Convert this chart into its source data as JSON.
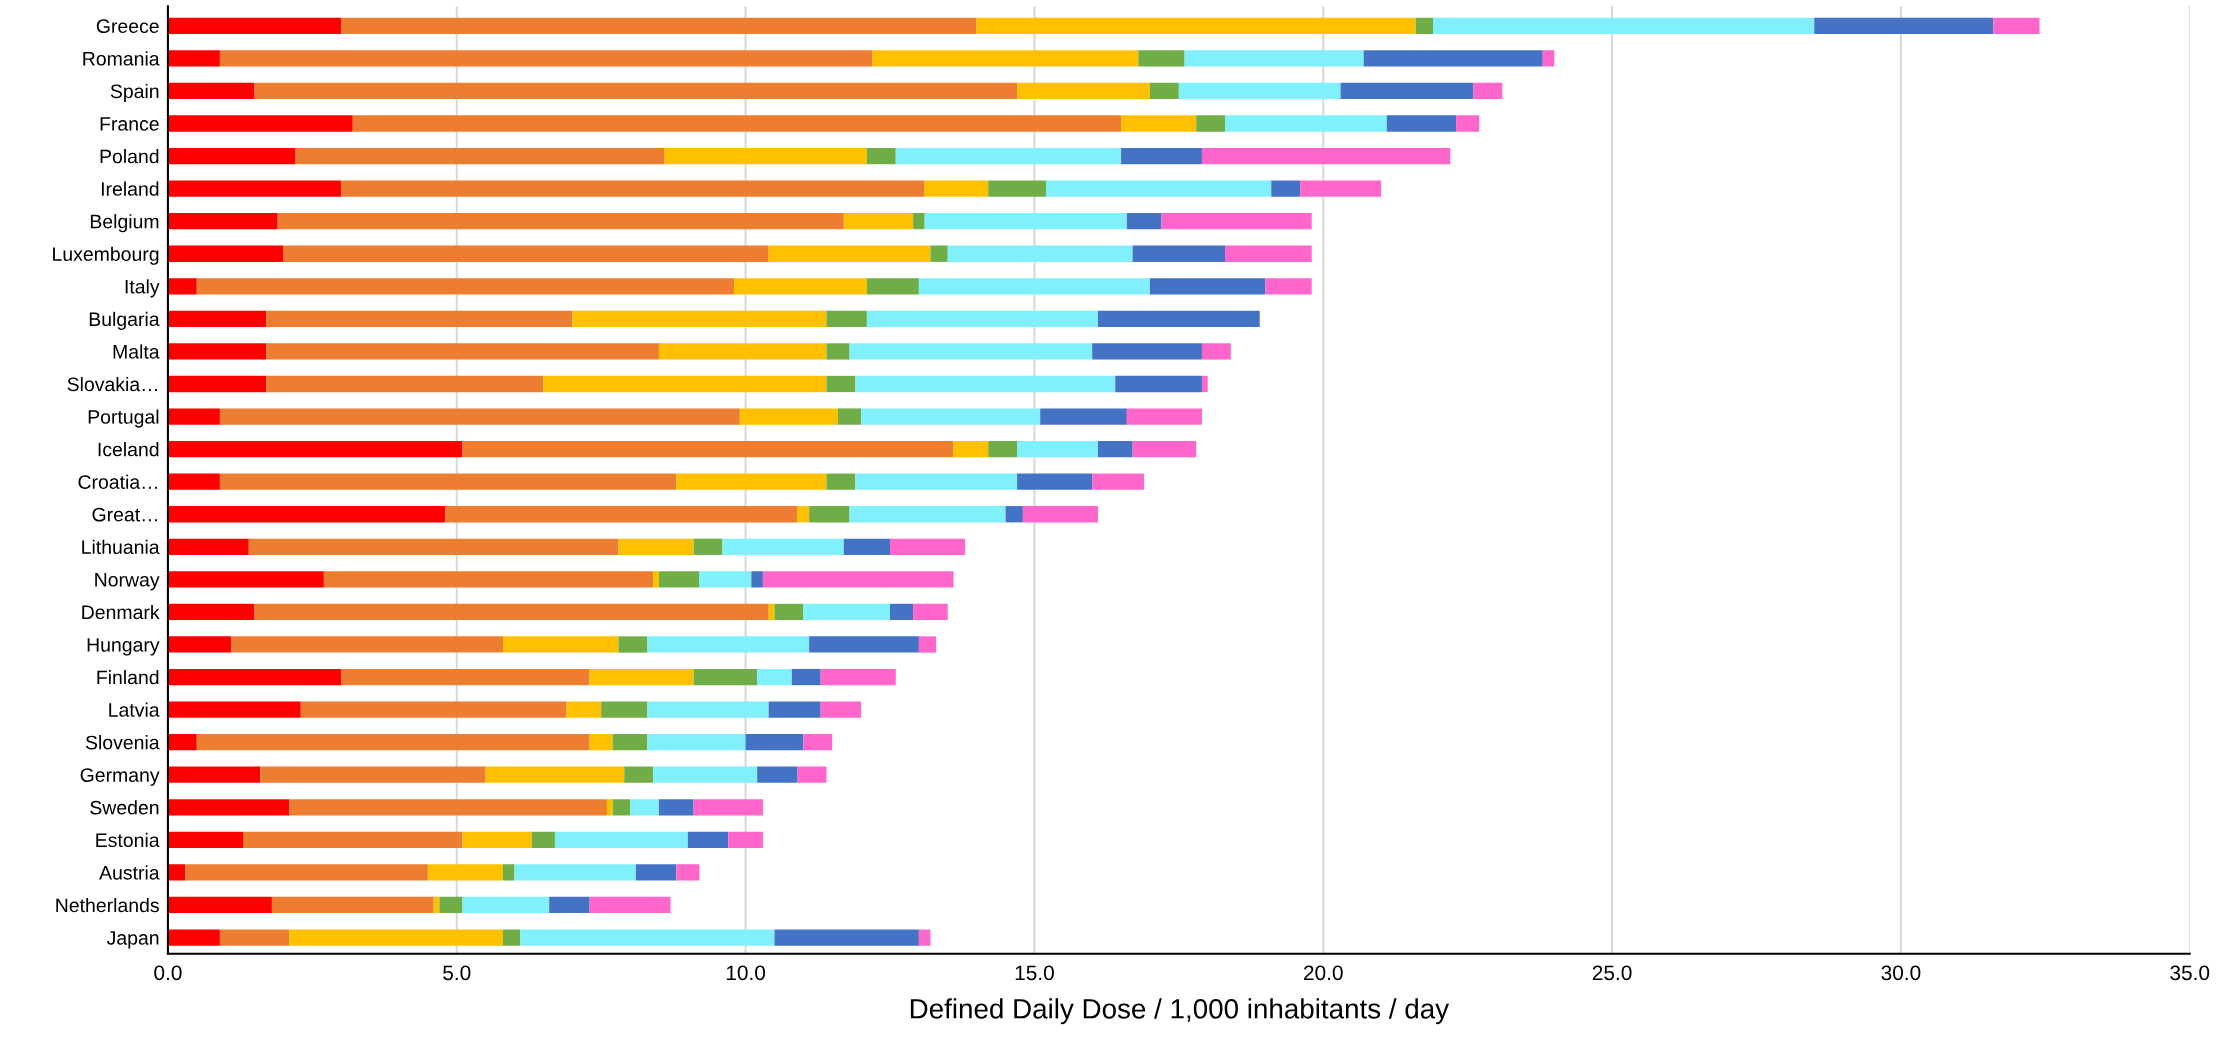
{
  "chart_data": {
    "type": "bar",
    "orientation": "horizontal",
    "stacked": true,
    "xlabel": "Defined Daily Dose / 1,000 inhabitants / day",
    "categories": [
      "Greece",
      "Romania",
      "Spain",
      "France",
      "Poland",
      "Ireland",
      "Belgium",
      "Luxembourg",
      "Italy",
      "Bulgaria",
      "Malta",
      "Slovakia…",
      "Portugal",
      "Iceland",
      "Croatia…",
      "Great…",
      "Lithuania",
      "Norway",
      "Denmark",
      "Hungary",
      "Finland",
      "Latvia",
      "Slovenia",
      "Germany",
      "Sweden",
      "Estonia",
      "Austria",
      "Netherlands",
      "Japan"
    ],
    "series": [
      {
        "color": "#ff0000",
        "values": [
          3.0,
          0.9,
          1.5,
          3.2,
          2.2,
          3.0,
          1.9,
          2.0,
          0.5,
          1.7,
          1.7,
          1.7,
          0.9,
          5.1,
          0.9,
          4.8,
          1.4,
          2.7,
          1.5,
          1.1,
          3.0,
          2.3,
          0.5,
          1.6,
          2.1,
          1.3,
          0.3,
          1.8,
          0.9
        ]
      },
      {
        "color": "#ed7d31",
        "values": [
          11.0,
          11.3,
          13.2,
          13.3,
          6.4,
          10.1,
          9.8,
          8.4,
          9.3,
          5.3,
          6.8,
          4.8,
          9.0,
          8.5,
          7.9,
          6.1,
          6.4,
          5.7,
          8.9,
          4.7,
          4.3,
          4.6,
          6.8,
          3.9,
          5.5,
          3.8,
          4.2,
          2.8,
          1.2
        ]
      },
      {
        "color": "#ffc000",
        "values": [
          7.6,
          4.6,
          2.3,
          1.3,
          3.5,
          1.1,
          1.2,
          2.8,
          2.3,
          4.4,
          2.9,
          4.9,
          1.7,
          0.6,
          2.6,
          0.2,
          1.3,
          0.1,
          0.1,
          2.0,
          1.8,
          0.6,
          0.4,
          2.4,
          0.1,
          1.2,
          1.3,
          0.1,
          3.7
        ]
      },
      {
        "color": "#70ad47",
        "values": [
          0.3,
          0.8,
          0.5,
          0.5,
          0.5,
          1.0,
          0.2,
          0.3,
          0.9,
          0.7,
          0.4,
          0.5,
          0.4,
          0.5,
          0.5,
          0.7,
          0.5,
          0.7,
          0.5,
          0.5,
          1.1,
          0.8,
          0.6,
          0.5,
          0.3,
          0.4,
          0.2,
          0.4,
          0.3
        ]
      },
      {
        "color": "#80f0fc",
        "values": [
          6.6,
          3.1,
          2.8,
          2.8,
          3.9,
          3.9,
          3.5,
          3.2,
          4.0,
          4.0,
          4.2,
          4.5,
          3.1,
          1.4,
          2.8,
          2.7,
          2.1,
          0.9,
          1.5,
          2.8,
          0.6,
          2.1,
          1.7,
          1.8,
          0.5,
          2.3,
          2.1,
          1.5,
          4.4
        ]
      },
      {
        "color": "#4472c4",
        "values": [
          3.1,
          3.1,
          2.3,
          1.2,
          1.4,
          0.5,
          0.6,
          1.6,
          2.0,
          2.8,
          1.9,
          1.5,
          1.5,
          0.6,
          1.3,
          0.3,
          0.8,
          0.2,
          0.4,
          1.9,
          0.5,
          0.9,
          1.0,
          0.7,
          0.6,
          0.7,
          0.7,
          0.7,
          2.5
        ]
      },
      {
        "color": "#ff66cc",
        "values": [
          0.8,
          0.2,
          0.5,
          0.4,
          4.3,
          1.4,
          2.6,
          1.5,
          0.8,
          0.0,
          0.5,
          0.1,
          1.3,
          1.1,
          0.9,
          1.3,
          1.3,
          3.3,
          0.6,
          0.3,
          1.3,
          0.7,
          0.5,
          0.5,
          1.2,
          0.6,
          0.4,
          1.4,
          0.2
        ]
      }
    ],
    "xlim": [
      0,
      35
    ],
    "xticks": [
      {
        "value": 0,
        "label": "0.0"
      },
      {
        "value": 5,
        "label": "5.0"
      },
      {
        "value": 10,
        "label": "10.0"
      },
      {
        "value": 15,
        "label": "15.0"
      },
      {
        "value": 20,
        "label": "20.0"
      },
      {
        "value": 25,
        "label": "25.0"
      },
      {
        "value": 30,
        "label": "30.0"
      },
      {
        "value": 35,
        "label": "35.0"
      }
    ],
    "grid": "x"
  }
}
